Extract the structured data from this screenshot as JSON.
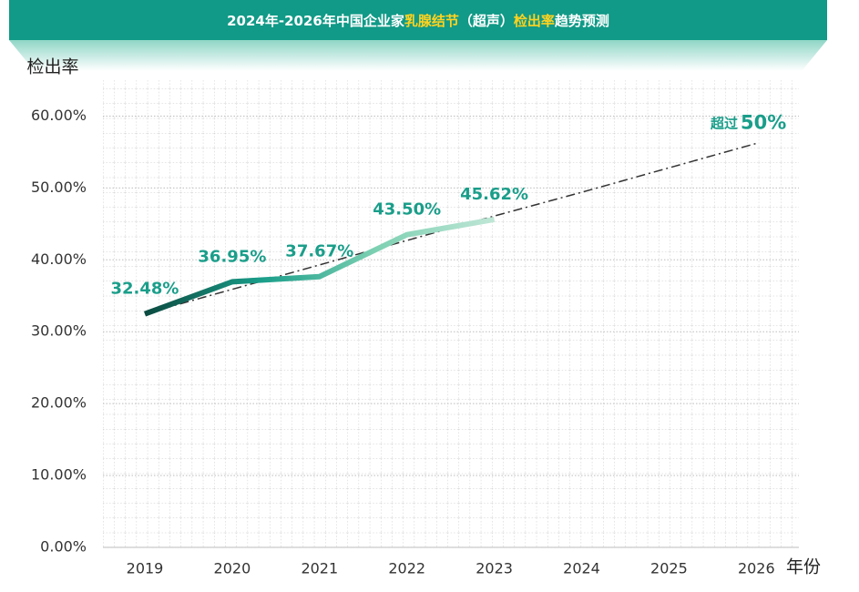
{
  "chart_data": {
    "type": "line",
    "title": [
      {
        "text": "2024年-2026年中国企业家",
        "highlight": false
      },
      {
        "text": "乳腺结节",
        "highlight": true
      },
      {
        "text": "（超声）",
        "highlight": false
      },
      {
        "text": "检出率",
        "highlight": true
      },
      {
        "text": "趋势预测",
        "highlight": false
      }
    ],
    "y_label": "检出率",
    "x_label": "年份",
    "categories": [
      "2019",
      "2020",
      "2021",
      "2022",
      "2023",
      "2024",
      "2025",
      "2026"
    ],
    "series": [
      {
        "name": "检出率",
        "colors": [
          "#0b4a40",
          "#1a9e8a",
          "#7fd1b3",
          "#bfe6d6"
        ],
        "values": [
          32.48,
          36.95,
          37.67,
          43.5,
          45.62,
          null,
          null,
          null
        ],
        "value_labels": [
          "32.48%",
          "36.95%",
          "37.67%",
          "43.50%",
          "45.62%",
          null,
          null,
          null
        ]
      },
      {
        "name": "趋势",
        "color": "#333333",
        "dash": "10 4 2 4",
        "values": [
          32.5,
          35.9,
          39.3,
          42.7,
          46.1,
          49.4,
          52.8,
          56.2
        ]
      }
    ],
    "annotation": {
      "prefix": "超过",
      "text": "50%"
    },
    "ylim": [
      0,
      65
    ],
    "yticks": [
      {
        "value": 0,
        "label": "0.00%"
      },
      {
        "value": 10,
        "label": "10.00%"
      },
      {
        "value": 20,
        "label": "20.00%"
      },
      {
        "value": 30,
        "label": "30.00%"
      },
      {
        "value": 40,
        "label": "40.00%"
      },
      {
        "value": 50,
        "label": "50.00%"
      },
      {
        "value": 60,
        "label": "60.00%"
      }
    ],
    "grid": true
  }
}
